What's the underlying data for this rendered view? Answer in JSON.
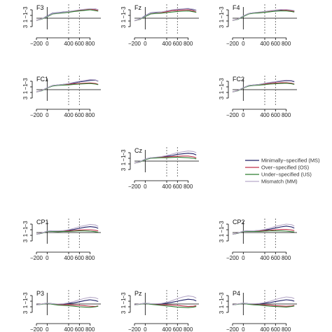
{
  "colors": {
    "MS": "#1f1f66",
    "OS": "#c0304a",
    "US": "#2e7d32",
    "MM": "#b7aac9",
    "axis": "#000000",
    "dashed": "#555555"
  },
  "chart_data": {
    "type": "line",
    "x_ticks": [
      -200,
      0,
      400,
      600,
      800
    ],
    "x_tick_labels": [
      "−200",
      "0",
      "400",
      "600",
      "800"
    ],
    "y_ticks": [
      -3,
      -1,
      1,
      3
    ],
    "y_tick_labels": [
      "−3",
      "−1",
      "1",
      "3"
    ],
    "y_inverted": true,
    "xlim": [
      -200,
      1000
    ],
    "ylim": [
      -4,
      4
    ],
    "markers": [
      0,
      400,
      600
    ],
    "legend": {
      "placement": "right",
      "entries": [
        {
          "key": "MS",
          "label": "Minimally−specified (MS)"
        },
        {
          "key": "OS",
          "label": "Over−specified (OS)"
        },
        {
          "key": "US",
          "label": "Under−specified (US)"
        },
        {
          "key": "MM",
          "label": "Mismatch (MM)"
        }
      ]
    },
    "series_keys": [
      "MS",
      "OS",
      "US",
      "MM"
    ],
    "x": [
      -200,
      -100,
      0,
      100,
      200,
      300,
      400,
      500,
      600,
      700,
      800,
      900,
      950
    ],
    "panels": [
      {
        "name": "F3",
        "series": {
          "MS": [
            0.8,
            0.2,
            -0.8,
            -1.8,
            -2.0,
            -2.2,
            -2.4,
            -2.6,
            -2.8,
            -3.0,
            -3.2,
            -3.3,
            -3.0
          ],
          "OS": [
            0.8,
            0.2,
            -0.6,
            -1.6,
            -1.8,
            -2.0,
            -2.3,
            -2.6,
            -2.9,
            -3.1,
            -3.2,
            -3.0,
            -2.8
          ],
          "US": [
            0.8,
            0.3,
            -0.5,
            -1.5,
            -1.7,
            -1.9,
            -2.1,
            -2.4,
            -2.6,
            -2.8,
            -3.0,
            -2.7,
            -2.5
          ],
          "MM": [
            0.8,
            0.2,
            -0.7,
            -1.7,
            -1.9,
            -2.1,
            -2.4,
            -2.7,
            -3.0,
            -3.2,
            -3.4,
            -3.3,
            -3.0
          ]
        }
      },
      {
        "name": "Fz",
        "series": {
          "MS": [
            0.9,
            0.3,
            -0.9,
            -1.9,
            -2.1,
            -2.2,
            -2.5,
            -2.9,
            -3.1,
            -3.3,
            -3.4,
            -3.0,
            -2.8
          ],
          "OS": [
            0.9,
            0.4,
            -0.7,
            -1.7,
            -1.9,
            -2.0,
            -2.3,
            -2.7,
            -2.8,
            -2.9,
            -3.0,
            -2.6,
            -2.2
          ],
          "US": [
            0.9,
            0.4,
            -0.6,
            -1.5,
            -1.7,
            -1.8,
            -2.0,
            -2.2,
            -2.4,
            -2.5,
            -2.6,
            -2.3,
            -2.1
          ],
          "MM": [
            0.9,
            0.3,
            -0.8,
            -1.8,
            -2.0,
            -2.2,
            -2.6,
            -3.0,
            -3.2,
            -3.4,
            -3.5,
            -3.2,
            -2.9
          ]
        }
      },
      {
        "name": "F4",
        "series": {
          "MS": [
            0.8,
            0.3,
            -0.8,
            -1.7,
            -2.0,
            -2.1,
            -2.4,
            -2.6,
            -2.8,
            -2.9,
            -3.0,
            -2.8,
            -2.6
          ],
          "OS": [
            0.8,
            0.3,
            -0.7,
            -1.6,
            -1.9,
            -2.0,
            -2.3,
            -2.6,
            -2.9,
            -3.0,
            -2.9,
            -2.6,
            -2.4
          ],
          "US": [
            0.8,
            0.4,
            -0.6,
            -1.5,
            -1.8,
            -1.9,
            -2.1,
            -2.3,
            -2.5,
            -2.6,
            -2.6,
            -2.4,
            -2.2
          ],
          "MM": [
            0.8,
            0.3,
            -0.8,
            -1.7,
            -2.0,
            -2.2,
            -2.4,
            -2.7,
            -2.9,
            -3.1,
            -3.1,
            -2.9,
            -2.7
          ]
        }
      },
      {
        "name": "FC1",
        "series": {
          "MS": [
            0.8,
            0.3,
            -0.7,
            -1.5,
            -1.7,
            -1.9,
            -2.1,
            -2.4,
            -2.8,
            -3.0,
            -3.3,
            -3.4,
            -3.0
          ],
          "OS": [
            0.8,
            0.3,
            -0.6,
            -1.4,
            -1.6,
            -1.7,
            -1.9,
            -2.1,
            -2.2,
            -2.3,
            -2.4,
            -2.2,
            -1.9
          ],
          "US": [
            0.8,
            0.4,
            -0.6,
            -1.3,
            -1.5,
            -1.6,
            -1.7,
            -1.9,
            -2.0,
            -2.1,
            -2.2,
            -2.0,
            -1.8
          ],
          "MM": [
            0.8,
            0.3,
            -0.7,
            -1.5,
            -1.7,
            -1.9,
            -2.2,
            -2.6,
            -3.0,
            -3.3,
            -3.6,
            -3.5,
            -3.1
          ]
        }
      },
      {
        "name": "FC2",
        "series": {
          "MS": [
            0.8,
            0.3,
            -0.7,
            -1.5,
            -1.7,
            -1.9,
            -2.2,
            -2.5,
            -2.8,
            -3.0,
            -3.2,
            -3.1,
            -2.8
          ],
          "OS": [
            0.8,
            0.3,
            -0.6,
            -1.4,
            -1.6,
            -1.7,
            -2.0,
            -2.2,
            -2.4,
            -2.5,
            -2.5,
            -2.3,
            -2.0
          ],
          "US": [
            0.8,
            0.4,
            -0.6,
            -1.3,
            -1.5,
            -1.6,
            -1.8,
            -2.0,
            -2.1,
            -2.2,
            -2.3,
            -2.1,
            -1.9
          ],
          "MM": [
            0.8,
            0.3,
            -0.7,
            -1.5,
            -1.7,
            -1.9,
            -2.3,
            -2.6,
            -2.9,
            -3.2,
            -3.4,
            -3.3,
            -3.0
          ]
        }
      },
      {
        "name": "Cz",
        "series": {
          "MS": [
            0.7,
            0.2,
            -0.7,
            -1.2,
            -1.3,
            -1.5,
            -1.7,
            -2.0,
            -2.4,
            -2.6,
            -2.8,
            -2.6,
            -2.2
          ],
          "OS": [
            0.7,
            0.3,
            -0.6,
            -1.1,
            -1.2,
            -1.4,
            -1.5,
            -1.6,
            -1.7,
            -1.8,
            -1.8,
            -1.5,
            -1.2
          ],
          "US": [
            0.7,
            0.3,
            -0.5,
            -1.0,
            -1.1,
            -1.2,
            -1.2,
            -1.3,
            -1.4,
            -1.3,
            -1.2,
            -1.0,
            -0.8
          ],
          "MM": [
            0.7,
            0.2,
            -0.7,
            -1.2,
            -1.4,
            -1.6,
            -2.0,
            -2.5,
            -3.0,
            -3.3,
            -3.6,
            -3.4,
            -3.0
          ]
        }
      },
      {
        "name": "CP1",
        "series": {
          "MS": [
            0.6,
            0.2,
            -0.5,
            -0.6,
            -0.5,
            -0.6,
            -0.8,
            -1.1,
            -1.5,
            -1.9,
            -2.1,
            -1.9,
            -1.5
          ],
          "OS": [
            0.6,
            0.2,
            -0.4,
            -0.5,
            -0.4,
            -0.5,
            -0.6,
            -0.7,
            -0.9,
            -1.0,
            -1.0,
            -0.8,
            -0.6
          ],
          "US": [
            0.6,
            0.3,
            -0.4,
            -0.4,
            -0.3,
            -0.4,
            -0.4,
            -0.5,
            -0.6,
            -0.6,
            -0.5,
            -0.3,
            -0.1
          ],
          "MM": [
            0.6,
            0.2,
            -0.5,
            -0.6,
            -0.6,
            -0.7,
            -1.0,
            -1.5,
            -2.1,
            -2.5,
            -2.9,
            -2.7,
            -2.2
          ]
        }
      },
      {
        "name": "CP2",
        "series": {
          "MS": [
            0.6,
            0.2,
            -0.5,
            -0.6,
            -0.6,
            -0.7,
            -0.9,
            -1.2,
            -1.6,
            -2.0,
            -2.3,
            -2.0,
            -1.6
          ],
          "OS": [
            0.6,
            0.2,
            -0.4,
            -0.5,
            -0.5,
            -0.6,
            -0.7,
            -0.8,
            -1.0,
            -1.1,
            -1.1,
            -0.9,
            -0.7
          ],
          "US": [
            0.6,
            0.3,
            -0.4,
            -0.4,
            -0.4,
            -0.4,
            -0.5,
            -0.6,
            -0.6,
            -0.6,
            -0.5,
            -0.3,
            -0.2
          ],
          "MM": [
            0.6,
            0.2,
            -0.5,
            -0.6,
            -0.6,
            -0.8,
            -1.1,
            -1.6,
            -2.2,
            -2.6,
            -3.0,
            -2.8,
            -2.3
          ]
        }
      },
      {
        "name": "P3",
        "series": {
          "MS": [
            0.3,
            0.0,
            -0.3,
            -0.1,
            0.1,
            0.0,
            -0.2,
            -0.4,
            -0.8,
            -1.2,
            -1.5,
            -1.2,
            -0.9
          ],
          "OS": [
            0.3,
            0.0,
            -0.2,
            0.0,
            0.3,
            0.3,
            0.2,
            0.4,
            0.5,
            0.6,
            0.8,
            0.9,
            0.7
          ],
          "US": [
            0.3,
            0.1,
            -0.2,
            0.1,
            0.4,
            0.5,
            0.6,
            0.8,
            1.0,
            1.1,
            1.2,
            1.0,
            0.8
          ],
          "MM": [
            0.3,
            0.0,
            -0.3,
            -0.1,
            0.0,
            -0.1,
            -0.4,
            -0.9,
            -1.5,
            -2.0,
            -2.4,
            -2.2,
            -1.8
          ]
        }
      },
      {
        "name": "Pz",
        "series": {
          "MS": [
            0.3,
            0.0,
            -0.3,
            -0.1,
            0.0,
            -0.1,
            -0.3,
            -0.6,
            -1.0,
            -1.4,
            -1.7,
            -1.5,
            -1.1
          ],
          "OS": [
            0.3,
            0.0,
            -0.2,
            0.0,
            0.2,
            0.3,
            0.3,
            0.4,
            0.5,
            0.7,
            0.9,
            0.8,
            0.6
          ],
          "US": [
            0.3,
            0.1,
            -0.2,
            0.1,
            0.3,
            0.5,
            0.7,
            0.9,
            1.1,
            1.2,
            1.3,
            1.1,
            0.9
          ],
          "MM": [
            0.3,
            0.0,
            -0.3,
            -0.1,
            -0.1,
            -0.2,
            -0.6,
            -1.2,
            -1.9,
            -2.5,
            -2.9,
            -2.6,
            -2.1
          ]
        }
      },
      {
        "name": "P4",
        "series": {
          "MS": [
            0.3,
            0.0,
            -0.3,
            -0.1,
            0.0,
            -0.1,
            -0.3,
            -0.5,
            -0.9,
            -1.2,
            -1.5,
            -1.3,
            -1.0
          ],
          "OS": [
            0.3,
            0.0,
            -0.2,
            0.0,
            0.2,
            0.3,
            0.3,
            0.4,
            0.6,
            0.7,
            0.8,
            0.7,
            0.5
          ],
          "US": [
            0.3,
            0.1,
            -0.2,
            0.1,
            0.3,
            0.4,
            0.6,
            0.8,
            0.9,
            1.0,
            1.1,
            0.9,
            0.7
          ],
          "MM": [
            0.3,
            0.0,
            -0.3,
            -0.1,
            -0.1,
            -0.2,
            -0.5,
            -1.0,
            -1.6,
            -2.1,
            -2.5,
            -2.3,
            -1.9
          ]
        }
      }
    ]
  }
}
